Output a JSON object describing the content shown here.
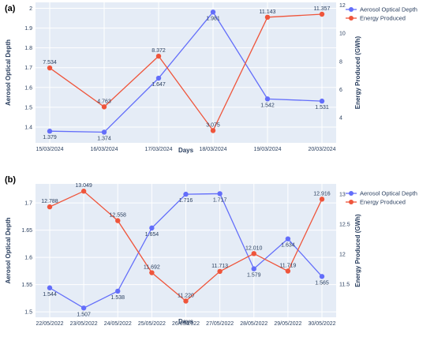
{
  "chart_data": [
    {
      "panel": "(a)",
      "type": "line",
      "categories": [
        "15/03/2024",
        "16/03/2024",
        "17/03/2024",
        "18/03/2024",
        "19/03/2024",
        "20/03/2024"
      ],
      "xlabel": "Days",
      "ylabel": "Aerosol Optical Depth",
      "y2label": "Energy Produced (GWh)",
      "ylim": [
        1.32,
        2.03
      ],
      "y2lim": [
        2.2,
        12.2
      ],
      "yticks": [
        1.4,
        1.5,
        1.6,
        1.7,
        1.8,
        1.9,
        2
      ],
      "y2ticks": [
        4,
        6,
        8,
        10,
        12
      ],
      "grid": true,
      "legend": "top-right",
      "series": [
        {
          "name": "Aerosol Optical Depth",
          "axis": "left",
          "color": "#636efa",
          "values": [
            1.379,
            1.374,
            1.647,
            1.981,
            1.542,
            1.531
          ],
          "labels": [
            "1.379",
            "1.374",
            "1.647",
            "1.981",
            "1.542",
            "1.531"
          ]
        },
        {
          "name": "Energy Produced",
          "axis": "right",
          "color": "#ef553b",
          "values": [
            7.534,
            4.763,
            8.372,
            3.075,
            11.143,
            11.357
          ],
          "labels": [
            "7.534",
            "4.763",
            "8.372",
            "3.075",
            "11.143",
            "11.357"
          ]
        }
      ]
    },
    {
      "panel": "(b)",
      "type": "line",
      "categories": [
        "22/05/2022",
        "23/05/2022",
        "24/05/2022",
        "25/05/2022",
        "26/05/2022",
        "27/05/2022",
        "28/05/2022",
        "29/05/2022",
        "30/05/2022"
      ],
      "xlabel": "Days",
      "ylabel": "Aerosol Optical Depth",
      "y2label": "Energy Produced (GWh)",
      "ylim": [
        1.49,
        1.735
      ],
      "y2lim": [
        10.95,
        13.17
      ],
      "yticks": [
        1.5,
        1.55,
        1.6,
        1.65,
        1.7
      ],
      "y2ticks": [
        11.5,
        12,
        12.5,
        13
      ],
      "grid": true,
      "legend": "top-right",
      "series": [
        {
          "name": "Aerosol Optical Depth",
          "axis": "left",
          "color": "#636efa",
          "values": [
            1.544,
            1.507,
            1.538,
            1.654,
            1.716,
            1.717,
            1.579,
            1.634,
            1.565
          ],
          "labels": [
            "1.544",
            "1.507",
            "1.538",
            "1.654",
            "1.716",
            "1.717",
            "1.579",
            "1.634",
            "1.565"
          ]
        },
        {
          "name": "Energy Produced",
          "axis": "right",
          "color": "#ef553b",
          "values": [
            12.788,
            13.049,
            12.558,
            11.692,
            11.22,
            11.713,
            12.01,
            11.719,
            12.916
          ],
          "labels": [
            "12.788",
            "13.049",
            "12.558",
            "11.692",
            "11.220",
            "11.713",
            "12.010",
            "11.719",
            "12.916"
          ]
        }
      ]
    }
  ]
}
